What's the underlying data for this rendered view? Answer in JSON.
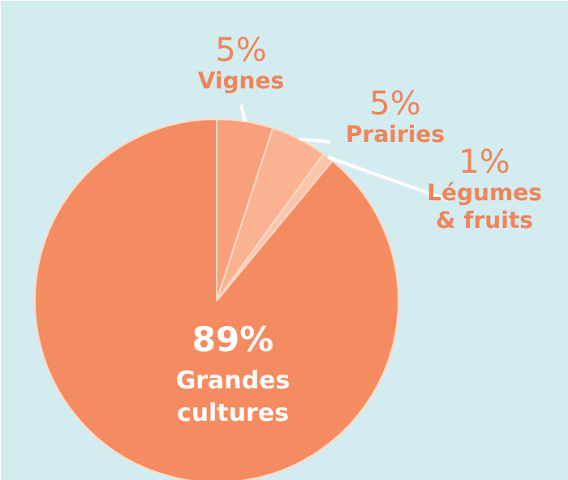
{
  "chart_data": {
    "type": "pie",
    "categories": [
      "Grandes\ncultures",
      "Vignes",
      "Prairies",
      "Légumes\n& fruits"
    ],
    "values": [
      89,
      5,
      5,
      1
    ],
    "colors": [
      "#f58b60",
      "#f8a07c",
      "#fab291",
      "#fcc5ab"
    ],
    "value_labels": [
      "89%",
      "5%",
      "5%",
      "1%"
    ]
  }
}
